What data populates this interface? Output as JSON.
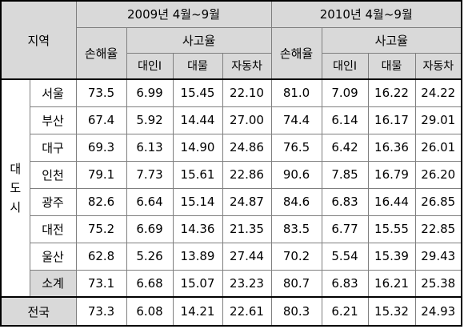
{
  "header": {
    "region": "지역",
    "period_2009": "2009년 4월~9월",
    "period_2010": "2010년 4월~9월",
    "loss_ratio": "손해율",
    "accident_rate": "사고율",
    "personal": "대인Ⅰ",
    "property": "대물",
    "vehicle": "자동차"
  },
  "group_label": [
    "대",
    "도",
    "시"
  ],
  "rows": [
    {
      "city": "서울",
      "v": [
        "73.5",
        "6.99",
        "15.45",
        "22.10",
        "81.0",
        "7.09",
        "16.22",
        "24.22"
      ]
    },
    {
      "city": "부산",
      "v": [
        "67.4",
        "5.92",
        "14.44",
        "27.00",
        "74.4",
        "6.14",
        "16.17",
        "29.01"
      ]
    },
    {
      "city": "대구",
      "v": [
        "69.3",
        "6.13",
        "14.90",
        "24.86",
        "76.5",
        "6.42",
        "16.36",
        "26.01"
      ]
    },
    {
      "city": "인천",
      "v": [
        "79.1",
        "7.73",
        "15.61",
        "22.86",
        "90.6",
        "7.85",
        "16.79",
        "26.20"
      ]
    },
    {
      "city": "광주",
      "v": [
        "82.6",
        "6.64",
        "15.14",
        "24.87",
        "84.6",
        "6.83",
        "16.44",
        "26.85"
      ]
    },
    {
      "city": "대전",
      "v": [
        "75.2",
        "6.69",
        "14.36",
        "21.35",
        "83.5",
        "6.77",
        "15.55",
        "22.85"
      ]
    },
    {
      "city": "울산",
      "v": [
        "62.8",
        "5.26",
        "13.89",
        "27.44",
        "70.2",
        "5.54",
        "15.39",
        "29.43"
      ]
    }
  ],
  "subtotal": {
    "label": "소계",
    "v": [
      "73.1",
      "6.68",
      "15.07",
      "23.23",
      "80.7",
      "6.83",
      "16.21",
      "25.38"
    ]
  },
  "total": {
    "label": "전국",
    "v": [
      "73.3",
      "6.08",
      "14.21",
      "22.61",
      "80.3",
      "6.21",
      "15.32",
      "24.93"
    ]
  }
}
